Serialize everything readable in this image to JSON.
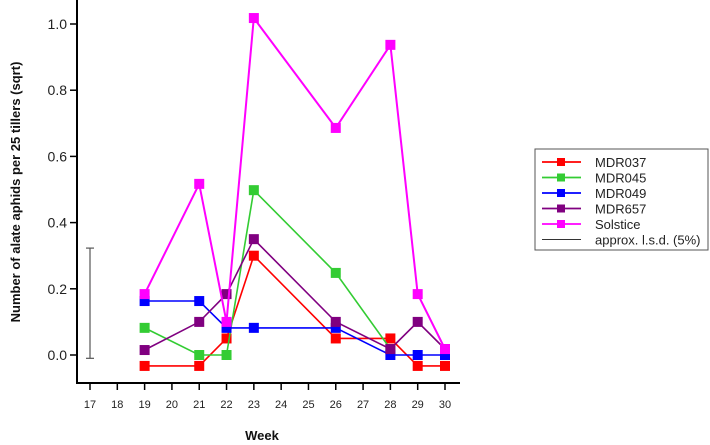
{
  "chart_data": {
    "type": "line",
    "title": "",
    "xlabel": "Week",
    "ylabel": "Number of alate aphids per 25 tillers (sqrt)",
    "x_ticks": [
      17,
      18,
      19,
      20,
      21,
      22,
      23,
      24,
      25,
      26,
      27,
      28,
      29,
      30
    ],
    "y_ticks": [
      "0.0",
      "0.2",
      "0.4",
      "0.6",
      "0.8",
      "1.0"
    ],
    "xlim": [
      17,
      30
    ],
    "ylim": [
      -0.08,
      1.07
    ],
    "grid": false,
    "legend_position": "right",
    "x": [
      19,
      21,
      22,
      23,
      26,
      28,
      29,
      30
    ],
    "series": [
      {
        "name": "MDR037",
        "color": "#ff0000",
        "x": [
          19,
          21,
          22,
          23,
          26,
          28,
          29,
          30
        ],
        "values": [
          -0.033,
          -0.033,
          0.05,
          0.3,
          0.05,
          0.05,
          -0.033,
          -0.033
        ]
      },
      {
        "name": "MDR045",
        "color": "#33cc33",
        "x": [
          19,
          21,
          22,
          23,
          26,
          28
        ],
        "values": [
          0.082,
          0.0,
          0.0,
          0.498,
          0.248,
          0.018
        ]
      },
      {
        "name": "MDR049",
        "color": "#0000ff",
        "x": [
          19,
          21,
          22,
          23,
          26,
          28,
          29,
          30
        ],
        "values": [
          0.163,
          0.163,
          0.082,
          0.082,
          0.082,
          0.0,
          0.0,
          0.0
        ]
      },
      {
        "name": "MDR657",
        "color": "#800080",
        "x": [
          19,
          21,
          22,
          23,
          26,
          28,
          29,
          30
        ],
        "values": [
          0.015,
          0.1,
          0.184,
          0.35,
          0.1,
          0.018,
          0.1,
          0.018
        ]
      },
      {
        "name": "Solstice",
        "color": "#ff00ff",
        "x": [
          19,
          21,
          22,
          23,
          26,
          28,
          29,
          30
        ],
        "values": [
          0.184,
          0.517,
          0.1,
          1.018,
          0.686,
          0.937,
          0.184,
          0.018
        ]
      }
    ],
    "error_bar": {
      "label": "approx. l.s.d. (5%)",
      "x": 17,
      "low": -0.01,
      "high": 0.323,
      "color": "#555555"
    }
  },
  "legend": {
    "items": [
      {
        "label": "MDR037",
        "color": "#ff0000"
      },
      {
        "label": "MDR045",
        "color": "#33cc33"
      },
      {
        "label": "MDR049",
        "color": "#0000ff"
      },
      {
        "label": "MDR657",
        "color": "#800080"
      },
      {
        "label": "Solstice",
        "color": "#ff00ff"
      },
      {
        "label": "approx. l.s.d. (5%)",
        "color": "#333333"
      }
    ]
  }
}
